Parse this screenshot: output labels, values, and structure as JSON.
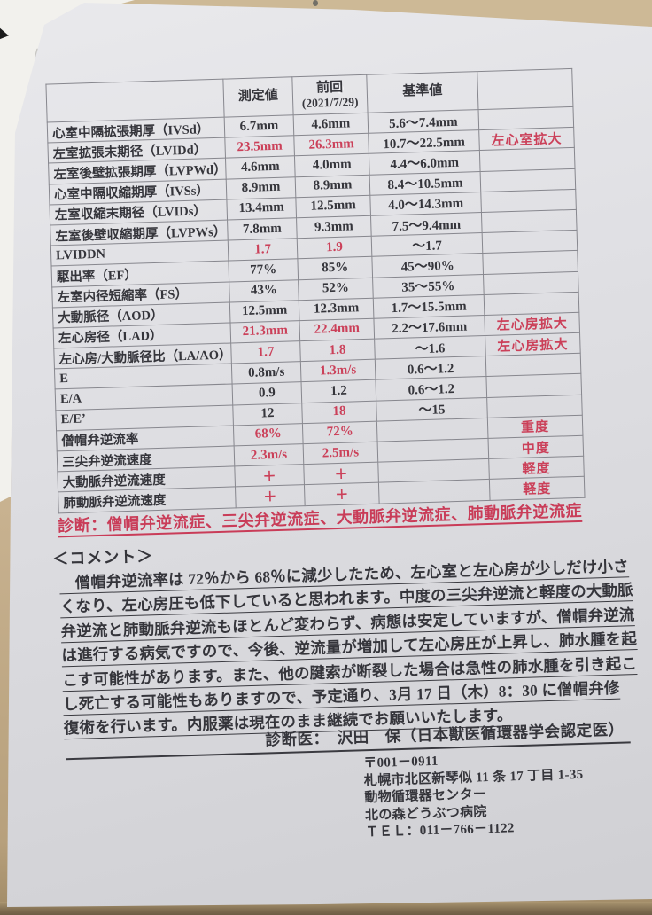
{
  "colors": {
    "accent_red": "#cb4059",
    "text": "#35353b",
    "paper": "#dcdce0",
    "table_border": "#87878e",
    "desk_top": "#cdb996",
    "desk_bottom": "#6d5d45"
  },
  "table": {
    "header": {
      "measured": "測定値",
      "previous": "前回",
      "previous_sub": "(2021/7/29)",
      "reference": "基準値"
    },
    "rows": [
      {
        "label": "心室中隔拡張期厚（IVSd）",
        "measured": "6.7mm",
        "measured_red": false,
        "previous": "4.6mm",
        "previous_red": false,
        "reference": "5.6〜7.4mm",
        "note": ""
      },
      {
        "label": "左室拡張末期径（LVIDd）",
        "measured": "23.5mm",
        "measured_red": true,
        "previous": "26.3mm",
        "previous_red": true,
        "reference": "10.7〜22.5mm",
        "note": "左心室拡大"
      },
      {
        "label": "左室後壁拡張期厚（LVPWd）",
        "measured": "4.6mm",
        "measured_red": false,
        "previous": "4.0mm",
        "previous_red": false,
        "reference": "4.4〜6.0mm",
        "note": ""
      },
      {
        "label": "心室中隔収縮期厚（IVSs）",
        "measured": "8.9mm",
        "measured_red": false,
        "previous": "8.9mm",
        "previous_red": false,
        "reference": "8.4〜10.5mm",
        "note": ""
      },
      {
        "label": "左室収縮末期径（LVIDs）",
        "measured": "13.4mm",
        "measured_red": false,
        "previous": "12.5mm",
        "previous_red": false,
        "reference": "4.0〜14.3mm",
        "note": ""
      },
      {
        "label": "左室後壁収縮期厚（LVPWs）",
        "measured": "7.8mm",
        "measured_red": false,
        "previous": "9.3mm",
        "previous_red": false,
        "reference": "7.5〜9.4mm",
        "note": ""
      },
      {
        "label": "LVIDDN",
        "measured": "1.7",
        "measured_red": true,
        "previous": "1.9",
        "previous_red": true,
        "reference": "〜1.7",
        "note": ""
      },
      {
        "label": "駆出率（EF）",
        "measured": "77%",
        "measured_red": false,
        "previous": "85%",
        "previous_red": false,
        "reference": "45〜90%",
        "note": ""
      },
      {
        "label": "左室内径短縮率（FS）",
        "measured": "43%",
        "measured_red": false,
        "previous": "52%",
        "previous_red": false,
        "reference": "35〜55%",
        "note": ""
      },
      {
        "label": "大動脈径（AOD）",
        "measured": "12.5mm",
        "measured_red": false,
        "previous": "12.3mm",
        "previous_red": false,
        "reference": "1.7〜15.5mm",
        "note": ""
      },
      {
        "label": "左心房径（LAD）",
        "measured": "21.3mm",
        "measured_red": true,
        "previous": "22.4mm",
        "previous_red": true,
        "reference": "2.2〜17.6mm",
        "note": "左心房拡大"
      },
      {
        "label": "左心房/大動脈径比（LA/AO）",
        "measured": "1.7",
        "measured_red": true,
        "previous": "1.8",
        "previous_red": true,
        "reference": "〜1.6",
        "note": "左心房拡大"
      },
      {
        "label": "E",
        "measured": "0.8m/s",
        "measured_red": false,
        "previous": "1.3m/s",
        "previous_red": true,
        "reference": "0.6〜1.2",
        "note": ""
      },
      {
        "label": "E/A",
        "measured": "0.9",
        "measured_red": false,
        "previous": "1.2",
        "previous_red": false,
        "reference": "0.6〜1.2",
        "note": ""
      },
      {
        "label": "E/E’",
        "measured": "12",
        "measured_red": false,
        "previous": "18",
        "previous_red": true,
        "reference": "〜15",
        "note": ""
      },
      {
        "label": "僧帽弁逆流率",
        "measured": "68%",
        "measured_red": true,
        "previous": "72%",
        "previous_red": true,
        "reference": "",
        "note": "重度"
      },
      {
        "label": "三尖弁逆流速度",
        "measured": "2.3m/s",
        "measured_red": true,
        "previous": "2.5m/s",
        "previous_red": true,
        "reference": "",
        "note": "中度"
      },
      {
        "label": "大動脈弁逆流速度",
        "measured": "＋",
        "measured_red": true,
        "previous": "＋",
        "previous_red": true,
        "reference": "",
        "note": "軽度"
      },
      {
        "label": "肺動脈弁逆流速度",
        "measured": "＋",
        "measured_red": true,
        "previous": "＋",
        "previous_red": true,
        "reference": "",
        "note": "軽度"
      }
    ]
  },
  "diagnosis": "診断：僧帽弁逆流症、三尖弁逆流症、大動脈弁逆流症、肺動脈弁逆流症",
  "comment": {
    "title": "＜コメント＞",
    "lines": [
      "　僧帽弁逆流率は 72％から 68％に減少したため、左心室と左心房が少しだけ小さ",
      "くなり、左心房圧も低下していると思われます。中度の三尖弁逆流と軽度の大動脈",
      "弁逆流と肺動脈弁逆流もほとんど変わらず、病態は安定していますが、僧帽弁逆流",
      "は進行する病気ですので、今後、逆流量が増加して左心房圧が上昇し、肺水腫を起",
      "こす可能性があります。また、他の腱索が断裂した場合は急性の肺水腫を引き起こ",
      "し死亡する可能性もありますので、予定通り、3月 17 日（木）8：30 に僧帽弁修",
      "復術を行います。内服薬は現在のまま継続でお願いいたします。"
    ]
  },
  "signature": "診断医：　沢田　保（日本獣医循環器学会認定医）",
  "clinic": {
    "lines": [
      "〒001－0911",
      "札幌市北区新琴似 11 条 17 丁目 1-35",
      "動物循環器センター",
      "北の森どうぶつ病院",
      "ＴＥＬ：011－766－1122"
    ]
  }
}
